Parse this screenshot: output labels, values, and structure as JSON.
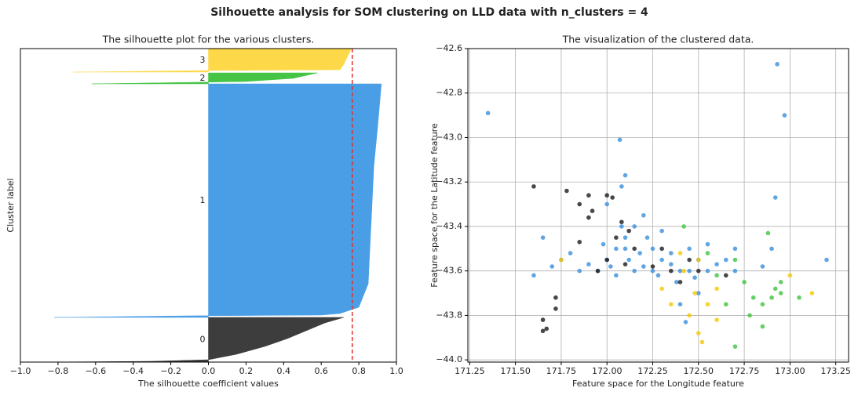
{
  "title": "Silhouette analysis for SOM clustering on LLD data with n_clusters = 4",
  "chart_data": [
    {
      "type": "silhouette",
      "title": "The silhouette plot for the various clusters.",
      "x_label": "The silhouette coefficient values",
      "y_label": "Cluster label",
      "xlim": [
        -1.0,
        1.0
      ],
      "ylim": [
        0,
        400
      ],
      "xticks": [
        {
          "value": -1.0,
          "label": "−1.0"
        },
        {
          "value": -0.8,
          "label": "−0.8"
        },
        {
          "value": -0.6,
          "label": "−0.6"
        },
        {
          "value": -0.4,
          "label": "−0.4"
        },
        {
          "value": -0.2,
          "label": "−0.2"
        },
        {
          "value": 0.0,
          "label": "0.0"
        },
        0.2,
        0.4,
        0.6,
        0.8,
        {
          "value": 1.0,
          "label": "1.0"
        }
      ],
      "reference_line": {
        "value": 0.765,
        "color": "#e0302a"
      },
      "series": [
        {
          "name": "0",
          "color": "#3d3d3d",
          "samples": [
            0,
            1,
            3,
            10,
            20,
            30,
            40,
            50,
            57
          ],
          "values": [
            -0.85,
            -0.3,
            0.0,
            0.15,
            0.3,
            0.42,
            0.52,
            0.62,
            0.72
          ]
        },
        {
          "name": "1",
          "color": "#4a9ee6",
          "samples": [
            57,
            59,
            60,
            62,
            70,
            100,
            150,
            200,
            250,
            300,
            355
          ],
          "values": [
            -0.82,
            -0.1,
            0.6,
            0.7,
            0.8,
            0.85,
            0.86,
            0.87,
            0.88,
            0.9,
            0.92
          ]
        },
        {
          "name": "2",
          "color": "#46c446",
          "samples": [
            355,
            358,
            362,
            369
          ],
          "values": [
            -0.62,
            0.2,
            0.45,
            0.58
          ]
        },
        {
          "name": "3",
          "color": "#fdd94a",
          "samples": [
            370,
            372,
            373,
            380,
            390,
            400
          ],
          "values": [
            -0.72,
            0.0,
            0.7,
            0.72,
            0.74,
            0.76
          ]
        }
      ]
    },
    {
      "type": "scatter",
      "title": "The visualization of the clustered data.",
      "x_label": "Feature space for the Longitude feature",
      "y_label": "Feature space for the Latitude feature",
      "xlim": [
        171.24,
        173.32
      ],
      "ylim": [
        -44.01,
        -42.6
      ],
      "grid": true,
      "xticks": [
        171.25,
        {
          "value": 171.5,
          "label": "171.50"
        },
        171.75,
        {
          "value": 172.0,
          "label": "172.00"
        },
        172.25,
        {
          "value": 172.5,
          "label": "172.50"
        },
        172.75,
        {
          "value": 173.0,
          "label": "173.00"
        },
        173.25
      ],
      "yticks": [
        {
          "value": -44.0,
          "label": "−44.0"
        },
        {
          "value": -43.8,
          "label": "−43.8"
        },
        {
          "value": -43.6,
          "label": "−43.6"
        },
        {
          "value": -43.4,
          "label": "−43.4"
        },
        {
          "value": -43.2,
          "label": "−43.2"
        },
        {
          "value": -43.0,
          "label": "−43.0"
        },
        {
          "value": -42.8,
          "label": "−42.8"
        },
        {
          "value": -42.6,
          "label": "−42.6"
        }
      ],
      "series": [
        {
          "color": "#3a8fdc",
          "x": [
            171.35,
            172.93,
            172.97,
            172.07,
            172.92,
            173.2,
            172.1,
            172.08,
            172.0,
            171.65,
            171.6,
            172.4,
            172.43,
            172.2,
            172.15,
            172.3,
            172.55,
            172.65,
            172.7,
            172.9,
            171.75,
            171.85,
            171.9,
            171.95,
            172.0,
            172.05,
            172.1,
            172.12,
            172.15,
            172.2,
            172.25,
            172.3,
            172.35,
            172.4,
            172.45,
            172.5,
            172.55,
            172.6,
            172.08,
            172.1,
            172.05,
            171.8,
            171.7,
            172.02,
            172.18,
            172.28,
            172.38,
            172.48,
            172.5,
            172.35,
            171.98,
            172.7,
            172.85,
            172.45,
            172.25,
            172.22
          ],
          "values": [
            -42.89,
            -42.67,
            -42.9,
            -43.01,
            -43.27,
            -43.55,
            -43.17,
            -43.22,
            -43.3,
            -43.45,
            -43.62,
            -43.75,
            -43.83,
            -43.35,
            -43.4,
            -43.42,
            -43.48,
            -43.55,
            -43.5,
            -43.5,
            -43.55,
            -43.6,
            -43.57,
            -43.6,
            -43.55,
            -43.5,
            -43.45,
            -43.55,
            -43.6,
            -43.58,
            -43.6,
            -43.55,
            -43.57,
            -43.6,
            -43.6,
            -43.55,
            -43.6,
            -43.57,
            -43.4,
            -43.5,
            -43.62,
            -43.52,
            -43.58,
            -43.58,
            -43.52,
            -43.62,
            -43.65,
            -43.63,
            -43.7,
            -43.52,
            -43.48,
            -43.6,
            -43.58,
            -43.5,
            -43.5,
            -43.45
          ]
        },
        {
          "color": "#1a1a1a",
          "x": [
            171.6,
            171.78,
            171.9,
            171.92,
            171.9,
            171.85,
            172.0,
            172.03,
            171.65,
            171.65,
            171.67,
            171.72,
            171.72,
            171.85,
            172.0,
            172.1,
            172.15,
            172.05,
            172.3,
            172.35,
            172.45,
            172.4,
            172.5,
            172.25,
            172.65,
            171.95,
            172.08,
            172.12
          ],
          "values": [
            -43.22,
            -43.24,
            -43.26,
            -43.33,
            -43.36,
            -43.3,
            -43.26,
            -43.27,
            -43.82,
            -43.87,
            -43.86,
            -43.72,
            -43.77,
            -43.47,
            -43.55,
            -43.57,
            -43.5,
            -43.45,
            -43.5,
            -43.6,
            -43.55,
            -43.65,
            -43.6,
            -43.58,
            -43.62,
            -43.6,
            -43.38,
            -43.42
          ]
        },
        {
          "color": "#3fc43f",
          "x": [
            172.42,
            172.6,
            172.75,
            172.8,
            172.85,
            172.9,
            172.92,
            172.95,
            172.85,
            172.7,
            172.78,
            173.05,
            172.88,
            172.95,
            172.65,
            172.55,
            172.7
          ],
          "values": [
            -43.4,
            -43.62,
            -43.65,
            -43.72,
            -43.75,
            -43.72,
            -43.68,
            -43.7,
            -43.85,
            -43.94,
            -43.8,
            -43.72,
            -43.43,
            -43.65,
            -43.75,
            -43.52,
            -43.55
          ]
        },
        {
          "color": "#f5c800",
          "x": [
            171.75,
            172.4,
            172.45,
            172.5,
            172.52,
            172.48,
            172.55,
            172.6,
            172.3,
            172.35,
            173.0,
            173.12,
            172.6,
            172.42,
            172.5
          ],
          "values": [
            -43.55,
            -43.52,
            -43.8,
            -43.88,
            -43.92,
            -43.7,
            -43.75,
            -43.68,
            -43.68,
            -43.75,
            -43.62,
            -43.7,
            -43.82,
            -43.6,
            -43.55
          ]
        }
      ]
    }
  ]
}
